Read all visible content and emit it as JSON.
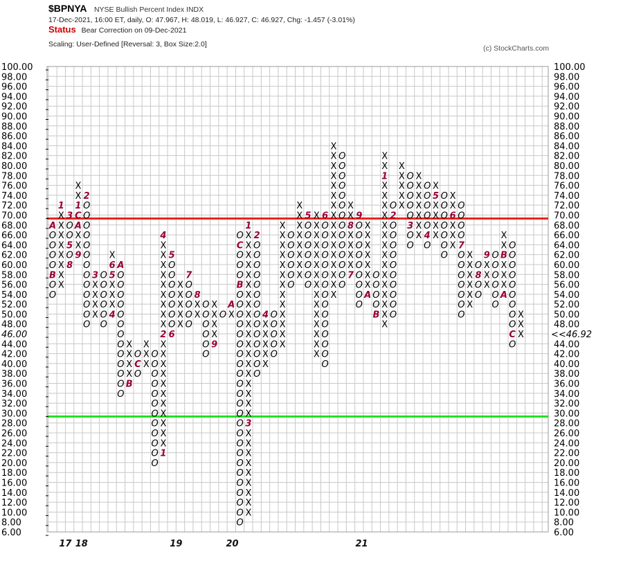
{
  "header": {
    "symbol": "$BPNYA",
    "description": "NYSE Bullish Percent Index  INDX",
    "quote_line": "17-Dec-2021, 16:00 ET, daily, O: 47.967, H: 48.019, L: 46.927, C: 46.927, Chg: -1.457 (-3.01%)",
    "status_label": "Status",
    "status_value": "Bear Correction on 09-Dec-2021",
    "scaling": "Scaling: User-Defined [Reversal: 3, Box Size:2.0]",
    "copyright": "(c) StockCharts.com"
  },
  "chart_data": {
    "type": "point-and-figure",
    "box_size": 2,
    "reversal": 3,
    "y_range": [
      6,
      100
    ],
    "y_tick_step": 2,
    "left_marker_label": "46.00",
    "last_price_label": "<<46.92",
    "last_price": 46.927,
    "reference_lines": [
      {
        "value": 70,
        "color": "#e8261c"
      },
      {
        "value": 30,
        "color": "#22dd22"
      }
    ],
    "x_labels": [
      {
        "col": 1,
        "text": "17"
      },
      {
        "col": 2,
        "text": "18"
      },
      {
        "col": 11,
        "text": "19"
      },
      {
        "col": 14,
        "text": "20"
      },
      {
        "col": 22,
        "text": "21"
      }
    ],
    "columns": [
      {
        "t": "O",
        "lo": 54,
        "hi": 68,
        "m": [
          [
            68,
            "A"
          ],
          [
            58,
            "B"
          ]
        ]
      },
      {
        "t": "X",
        "lo": 56,
        "hi": 72,
        "m": [
          [
            72,
            "1"
          ]
        ]
      },
      {
        "t": "O",
        "lo": 60,
        "hi": 70,
        "m": [
          [
            70,
            "3"
          ],
          [
            64,
            "5"
          ],
          [
            60,
            "8"
          ]
        ]
      },
      {
        "t": "X",
        "lo": 62,
        "hi": 76,
        "m": [
          [
            72,
            "1"
          ],
          [
            70,
            "C"
          ],
          [
            68,
            "A"
          ],
          [
            62,
            "9"
          ]
        ]
      },
      {
        "t": "O",
        "lo": 48,
        "hi": 74,
        "m": [
          [
            74,
            "2"
          ]
        ]
      },
      {
        "t": "X",
        "lo": 50,
        "hi": 56,
        "m": [
          [
            58,
            "3"
          ]
        ]
      },
      {
        "t": "O",
        "lo": 48,
        "hi": 58,
        "m": []
      },
      {
        "t": "X",
        "lo": 50,
        "hi": 62,
        "m": [
          [
            60,
            "6"
          ],
          [
            58,
            "5"
          ],
          [
            50,
            "4"
          ]
        ]
      },
      {
        "t": "O",
        "lo": 34,
        "hi": 60,
        "m": [
          [
            60,
            "A"
          ]
        ]
      },
      {
        "t": "X",
        "lo": 36,
        "hi": 44,
        "m": [
          [
            36,
            "B"
          ]
        ]
      },
      {
        "t": "O",
        "lo": 38,
        "hi": 42,
        "m": [
          [
            40,
            "C"
          ]
        ]
      },
      {
        "t": "X",
        "lo": 40,
        "hi": 44,
        "m": []
      },
      {
        "t": "O",
        "lo": 20,
        "hi": 42,
        "m": []
      },
      {
        "t": "X",
        "lo": 22,
        "hi": 64,
        "m": [
          [
            66,
            "4"
          ],
          [
            46,
            "2"
          ],
          [
            22,
            "1"
          ]
        ]
      },
      {
        "t": "O",
        "lo": 46,
        "hi": 62,
        "m": [
          [
            62,
            "5"
          ],
          [
            46,
            "6"
          ]
        ]
      },
      {
        "t": "X",
        "lo": 48,
        "hi": 56,
        "m": []
      },
      {
        "t": "O",
        "lo": 48,
        "hi": 58,
        "m": [
          [
            58,
            "7"
          ]
        ]
      },
      {
        "t": "X",
        "lo": 50,
        "hi": 54,
        "m": [
          [
            54,
            "8"
          ]
        ]
      },
      {
        "t": "O",
        "lo": 42,
        "hi": 52,
        "m": []
      },
      {
        "t": "X",
        "lo": 44,
        "hi": 52,
        "m": [
          [
            44,
            "9"
          ]
        ]
      },
      {
        "t": "O",
        "lo": 50,
        "hi": 50,
        "m": []
      },
      {
        "t": "X",
        "lo": 50,
        "hi": 52,
        "m": [
          [
            52,
            "A"
          ]
        ]
      },
      {
        "t": "O",
        "lo": 8,
        "hi": 66,
        "m": [
          [
            64,
            "C"
          ],
          [
            56,
            "B"
          ]
        ]
      },
      {
        "t": "X",
        "lo": 10,
        "hi": 68,
        "m": [
          [
            68,
            "1"
          ],
          [
            28,
            "3"
          ]
        ]
      },
      {
        "t": "O",
        "lo": 38,
        "hi": 66,
        "m": [
          [
            66,
            "2"
          ]
        ]
      },
      {
        "t": "X",
        "lo": 40,
        "hi": 50,
        "m": [
          [
            50,
            "4"
          ]
        ]
      },
      {
        "t": "O",
        "lo": 42,
        "hi": 50,
        "m": []
      },
      {
        "t": "X",
        "lo": 44,
        "hi": 68,
        "m": []
      },
      {
        "t": "O",
        "lo": 56,
        "hi": 66,
        "m": []
      },
      {
        "t": "X",
        "lo": 58,
        "hi": 72,
        "m": []
      },
      {
        "t": "O",
        "lo": 56,
        "hi": 70,
        "m": [
          [
            70,
            "5"
          ]
        ]
      },
      {
        "t": "X",
        "lo": 42,
        "hi": 70,
        "m": []
      },
      {
        "t": "O",
        "lo": 40,
        "hi": 68,
        "m": [
          [
            70,
            "6"
          ]
        ]
      },
      {
        "t": "X",
        "lo": 54,
        "hi": 84,
        "m": []
      },
      {
        "t": "O",
        "lo": 56,
        "hi": 82,
        "m": []
      },
      {
        "t": "X",
        "lo": 58,
        "hi": 72,
        "m": [
          [
            58,
            "7"
          ],
          [
            68,
            "8"
          ]
        ]
      },
      {
        "t": "O",
        "lo": 52,
        "hi": 70,
        "m": [
          [
            70,
            "9"
          ]
        ]
      },
      {
        "t": "X",
        "lo": 54,
        "hi": 68,
        "m": [
          [
            54,
            "A"
          ]
        ]
      },
      {
        "t": "O",
        "lo": 50,
        "hi": 58,
        "m": [
          [
            50,
            "B"
          ]
        ]
      },
      {
        "t": "X",
        "lo": 48,
        "hi": 82,
        "m": [
          [
            78,
            "1"
          ]
        ]
      },
      {
        "t": "O",
        "lo": 50,
        "hi": 72,
        "m": [
          [
            70,
            "2"
          ]
        ]
      },
      {
        "t": "X",
        "lo": 72,
        "hi": 80,
        "m": []
      },
      {
        "t": "O",
        "lo": 64,
        "hi": 78,
        "m": [
          [
            68,
            "3"
          ]
        ]
      },
      {
        "t": "X",
        "lo": 66,
        "hi": 78,
        "m": []
      },
      {
        "t": "O",
        "lo": 64,
        "hi": 76,
        "m": [
          [
            66,
            "4"
          ]
        ]
      },
      {
        "t": "X",
        "lo": 66,
        "hi": 76,
        "m": [
          [
            74,
            "5"
          ]
        ]
      },
      {
        "t": "O",
        "lo": 62,
        "hi": 74,
        "m": []
      },
      {
        "t": "X",
        "lo": 64,
        "hi": 74,
        "m": [
          [
            70,
            "6"
          ]
        ]
      },
      {
        "t": "O",
        "lo": 50,
        "hi": 72,
        "m": [
          [
            64,
            "7"
          ]
        ]
      },
      {
        "t": "X",
        "lo": 52,
        "hi": 62,
        "m": []
      },
      {
        "t": "O",
        "lo": 54,
        "hi": 60,
        "m": [
          [
            58,
            "8"
          ]
        ]
      },
      {
        "t": "X",
        "lo": 56,
        "hi": 62,
        "m": [
          [
            62,
            "9"
          ]
        ]
      },
      {
        "t": "O",
        "lo": 52,
        "hi": 62,
        "m": []
      },
      {
        "t": "X",
        "lo": 54,
        "hi": 66,
        "m": [
          [
            62,
            "B"
          ],
          [
            54,
            "A"
          ]
        ]
      },
      {
        "t": "O",
        "lo": 44,
        "hi": 64,
        "m": [
          [
            46,
            "C"
          ]
        ]
      },
      {
        "t": "X",
        "lo": 46,
        "hi": 50,
        "m": []
      }
    ]
  }
}
